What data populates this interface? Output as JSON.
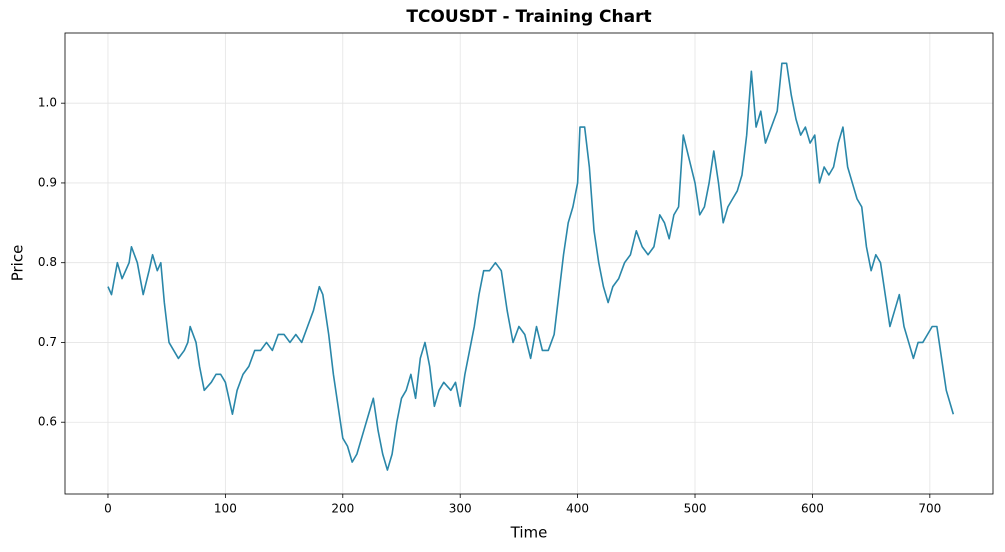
{
  "chart_data": {
    "type": "line",
    "title": "TCOUSDT - Training Chart",
    "x_label": "Time",
    "y_label": "Price",
    "color": "#2a87a9",
    "grid": true,
    "xlim": [
      -36.6,
      753.8
    ],
    "ylim": [
      0.51,
      1.088
    ],
    "xticks": [
      0,
      100,
      200,
      300,
      400,
      500,
      600,
      700
    ],
    "yticks": [
      0.6,
      0.7,
      0.8,
      0.9,
      {
        "value": 1,
        "label": "1.0"
      }
    ],
    "x": [
      0,
      3,
      8,
      12,
      18,
      20,
      25,
      30,
      35,
      38,
      42,
      45,
      48,
      52,
      56,
      60,
      65,
      68,
      70,
      75,
      78,
      82,
      88,
      92,
      96,
      100,
      103,
      106,
      110,
      115,
      120,
      125,
      130,
      135,
      140,
      145,
      150,
      155,
      160,
      165,
      170,
      175,
      180,
      183,
      188,
      192,
      196,
      200,
      204,
      208,
      212,
      218,
      222,
      226,
      230,
      234,
      238,
      242,
      246,
      250,
      254,
      258,
      262,
      266,
      270,
      274,
      278,
      282,
      286,
      292,
      296,
      300,
      304,
      308,
      312,
      316,
      320,
      325,
      330,
      335,
      340,
      345,
      350,
      355,
      360,
      365,
      370,
      375,
      380,
      384,
      388,
      392,
      396,
      400,
      402,
      406,
      410,
      414,
      418,
      422,
      426,
      430,
      435,
      440,
      445,
      450,
      455,
      460,
      465,
      470,
      474,
      478,
      482,
      486,
      490,
      495,
      500,
      504,
      508,
      512,
      516,
      520,
      524,
      528,
      532,
      536,
      540,
      544,
      548,
      552,
      556,
      560,
      565,
      570,
      574,
      578,
      582,
      586,
      590,
      594,
      598,
      602,
      606,
      610,
      614,
      618,
      622,
      626,
      630,
      634,
      638,
      642,
      646,
      650,
      654,
      658,
      662,
      666,
      670,
      674,
      678,
      682,
      686,
      690,
      694,
      698,
      702,
      706,
      710,
      714,
      718,
      720
    ],
    "values": [
      0.77,
      0.76,
      0.8,
      0.78,
      0.8,
      0.82,
      0.8,
      0.76,
      0.79,
      0.81,
      0.79,
      0.8,
      0.75,
      0.7,
      0.69,
      0.68,
      0.69,
      0.7,
      0.72,
      0.7,
      0.67,
      0.64,
      0.65,
      0.66,
      0.66,
      0.65,
      0.63,
      0.61,
      0.64,
      0.66,
      0.67,
      0.69,
      0.69,
      0.7,
      0.69,
      0.71,
      0.71,
      0.7,
      0.71,
      0.7,
      0.72,
      0.74,
      0.77,
      0.76,
      0.71,
      0.66,
      0.62,
      0.58,
      0.57,
      0.55,
      0.56,
      0.59,
      0.61,
      0.63,
      0.59,
      0.56,
      0.54,
      0.56,
      0.6,
      0.63,
      0.64,
      0.66,
      0.63,
      0.68,
      0.7,
      0.67,
      0.62,
      0.64,
      0.65,
      0.64,
      0.65,
      0.62,
      0.66,
      0.69,
      0.72,
      0.76,
      0.79,
      0.79,
      0.8,
      0.79,
      0.74,
      0.7,
      0.72,
      0.71,
      0.68,
      0.72,
      0.69,
      0.69,
      0.71,
      0.76,
      0.81,
      0.85,
      0.87,
      0.9,
      0.97,
      0.97,
      0.92,
      0.84,
      0.8,
      0.77,
      0.75,
      0.77,
      0.78,
      0.8,
      0.81,
      0.84,
      0.82,
      0.81,
      0.82,
      0.86,
      0.85,
      0.83,
      0.86,
      0.87,
      0.96,
      0.93,
      0.9,
      0.86,
      0.87,
      0.9,
      0.94,
      0.9,
      0.85,
      0.87,
      0.88,
      0.89,
      0.91,
      0.96,
      1.04,
      0.97,
      0.99,
      0.95,
      0.97,
      0.99,
      1.05,
      1.05,
      1.01,
      0.98,
      0.96,
      0.97,
      0.95,
      0.96,
      0.9,
      0.92,
      0.91,
      0.92,
      0.95,
      0.97,
      0.92,
      0.9,
      0.88,
      0.87,
      0.82,
      0.79,
      0.81,
      0.8,
      0.76,
      0.72,
      0.74,
      0.76,
      0.72,
      0.7,
      0.68,
      0.7,
      0.7,
      0.71,
      0.72,
      0.72,
      0.68,
      0.64,
      0.62,
      0.61
    ]
  }
}
